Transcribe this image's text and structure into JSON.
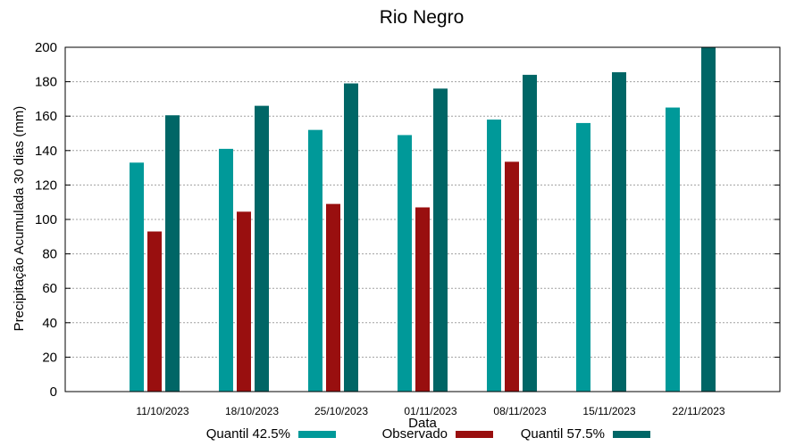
{
  "chart_data": {
    "type": "bar",
    "title": "Rio Negro",
    "xlabel": "Data",
    "ylabel": "Precipitação Acumulada 30 dias (mm)",
    "ylim": [
      0,
      200
    ],
    "yticks": [
      0,
      20,
      40,
      60,
      80,
      100,
      120,
      140,
      160,
      180,
      200
    ],
    "grid": true,
    "legend_position": "bottom",
    "categories": [
      "11/10/2023",
      "18/10/2023",
      "25/10/2023",
      "01/11/2023",
      "08/11/2023",
      "15/11/2023",
      "22/11/2023"
    ],
    "series": [
      {
        "name": "Quantil 42.5%",
        "color": "#009999",
        "values": [
          133,
          141,
          152,
          149,
          158,
          156,
          165
        ]
      },
      {
        "name": "Observado",
        "color": "#990f0f",
        "values": [
          93,
          104.5,
          109,
          107,
          133.5,
          null,
          null
        ]
      },
      {
        "name": "Quantil 57.5%",
        "color": "#006666",
        "values": [
          160.5,
          166,
          179,
          176,
          184,
          185.5,
          200
        ]
      }
    ]
  }
}
